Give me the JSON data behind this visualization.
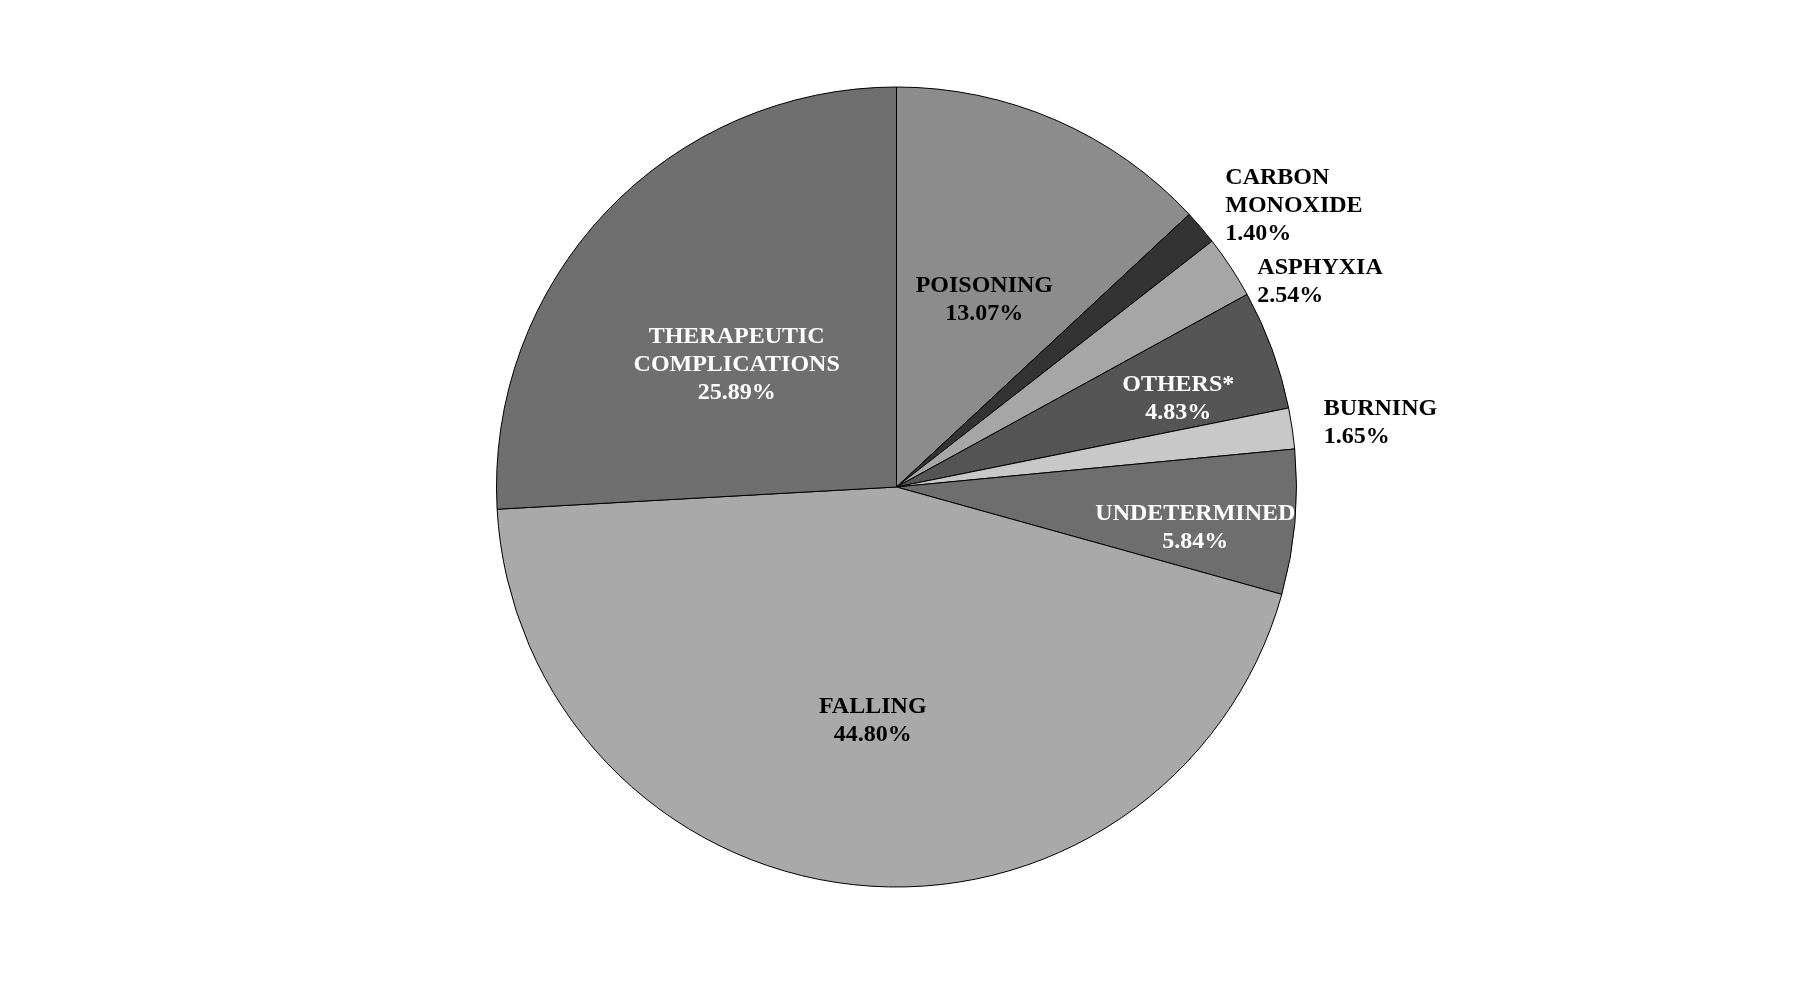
{
  "chart_data": {
    "type": "pie",
    "categories": [
      "POISONING",
      "CARBON MONOXIDE",
      "ASPHYXIA",
      "OTHERS*",
      "BURNING",
      "UNDETERMINED",
      "FALLING",
      "THERAPEUTIC COMPLICATIONS"
    ],
    "values": [
      13.07,
      1.4,
      2.54,
      4.83,
      1.65,
      5.84,
      44.8,
      25.89
    ],
    "value_labels": [
      "13.07%",
      "1.40%",
      "2.54%",
      "4.83%",
      "1.65%",
      "5.84%",
      "44.80%",
      "25.89%"
    ],
    "colors": [
      "#8c8c8c",
      "#333333",
      "#a6a6a6",
      "#555555",
      "#c8c8c8",
      "#6e6e6e",
      "#a9a9a9",
      "#6f6f6f"
    ],
    "legend": false
  }
}
